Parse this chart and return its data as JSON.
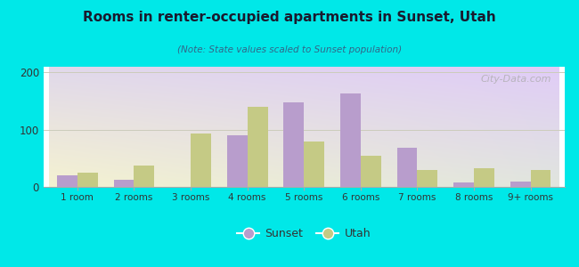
{
  "title": "Rooms in renter-occupied apartments in Sunset, Utah",
  "subtitle": "(Note: State values scaled to Sunset population)",
  "categories": [
    "1 room",
    "2 rooms",
    "3 rooms",
    "4 rooms",
    "5 rooms",
    "6 rooms",
    "7 rooms",
    "8 rooms",
    "9+ rooms"
  ],
  "sunset_values": [
    20,
    12,
    0,
    90,
    148,
    163,
    68,
    8,
    10
  ],
  "utah_values": [
    25,
    37,
    93,
    140,
    80,
    55,
    30,
    32,
    30
  ],
  "sunset_color": "#b89dcc",
  "utah_color": "#c5ca85",
  "background_outer": "#00e8e8",
  "ylim": [
    0,
    210
  ],
  "yticks": [
    0,
    100,
    200
  ],
  "grid_color": "#ddddcc",
  "watermark_text": "City-Data.com",
  "bar_width": 0.36,
  "title_color": "#1a1a2e",
  "subtitle_color": "#336688"
}
